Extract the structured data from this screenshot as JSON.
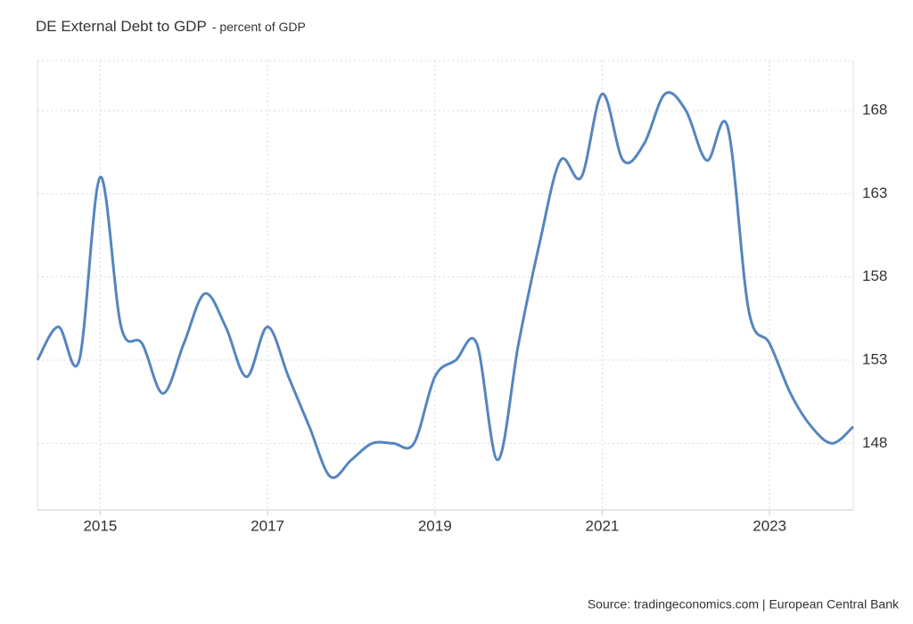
{
  "chart_data": {
    "type": "line",
    "title": "DE External Debt to GDP",
    "subtitle": "- percent of GDP",
    "source": "Source: tradingeconomics.com | European Central Bank",
    "x": [
      2014.25,
      2014.5,
      2014.75,
      2015.0,
      2015.25,
      2015.5,
      2015.75,
      2016.0,
      2016.25,
      2016.5,
      2016.75,
      2017.0,
      2017.25,
      2017.5,
      2017.75,
      2018.0,
      2018.25,
      2018.5,
      2018.75,
      2019.0,
      2019.25,
      2019.5,
      2019.75,
      2020.0,
      2020.25,
      2020.5,
      2020.75,
      2021.0,
      2021.25,
      2021.5,
      2021.75,
      2022.0,
      2022.25,
      2022.5,
      2022.75,
      2023.0,
      2023.25,
      2023.5,
      2023.75,
      2024.0
    ],
    "series": [
      {
        "name": "DE External Debt to GDP",
        "color": "#5585c0",
        "values": [
          153,
          155,
          153,
          164,
          155,
          154,
          151,
          154,
          157,
          155,
          152,
          155,
          152,
          149,
          146,
          147,
          148,
          148,
          148,
          152,
          153,
          154,
          147,
          154,
          160,
          165,
          164,
          169,
          165,
          166,
          169,
          168,
          165,
          167,
          156,
          154,
          151,
          149,
          148,
          149
        ]
      }
    ],
    "xlim": [
      2014.25,
      2024.0
    ],
    "xticks": [
      2015,
      2017,
      2019,
      2021,
      2023
    ],
    "ylim": [
      144,
      171
    ],
    "yticks": [
      148,
      153,
      158,
      163,
      168
    ],
    "grid": true
  }
}
